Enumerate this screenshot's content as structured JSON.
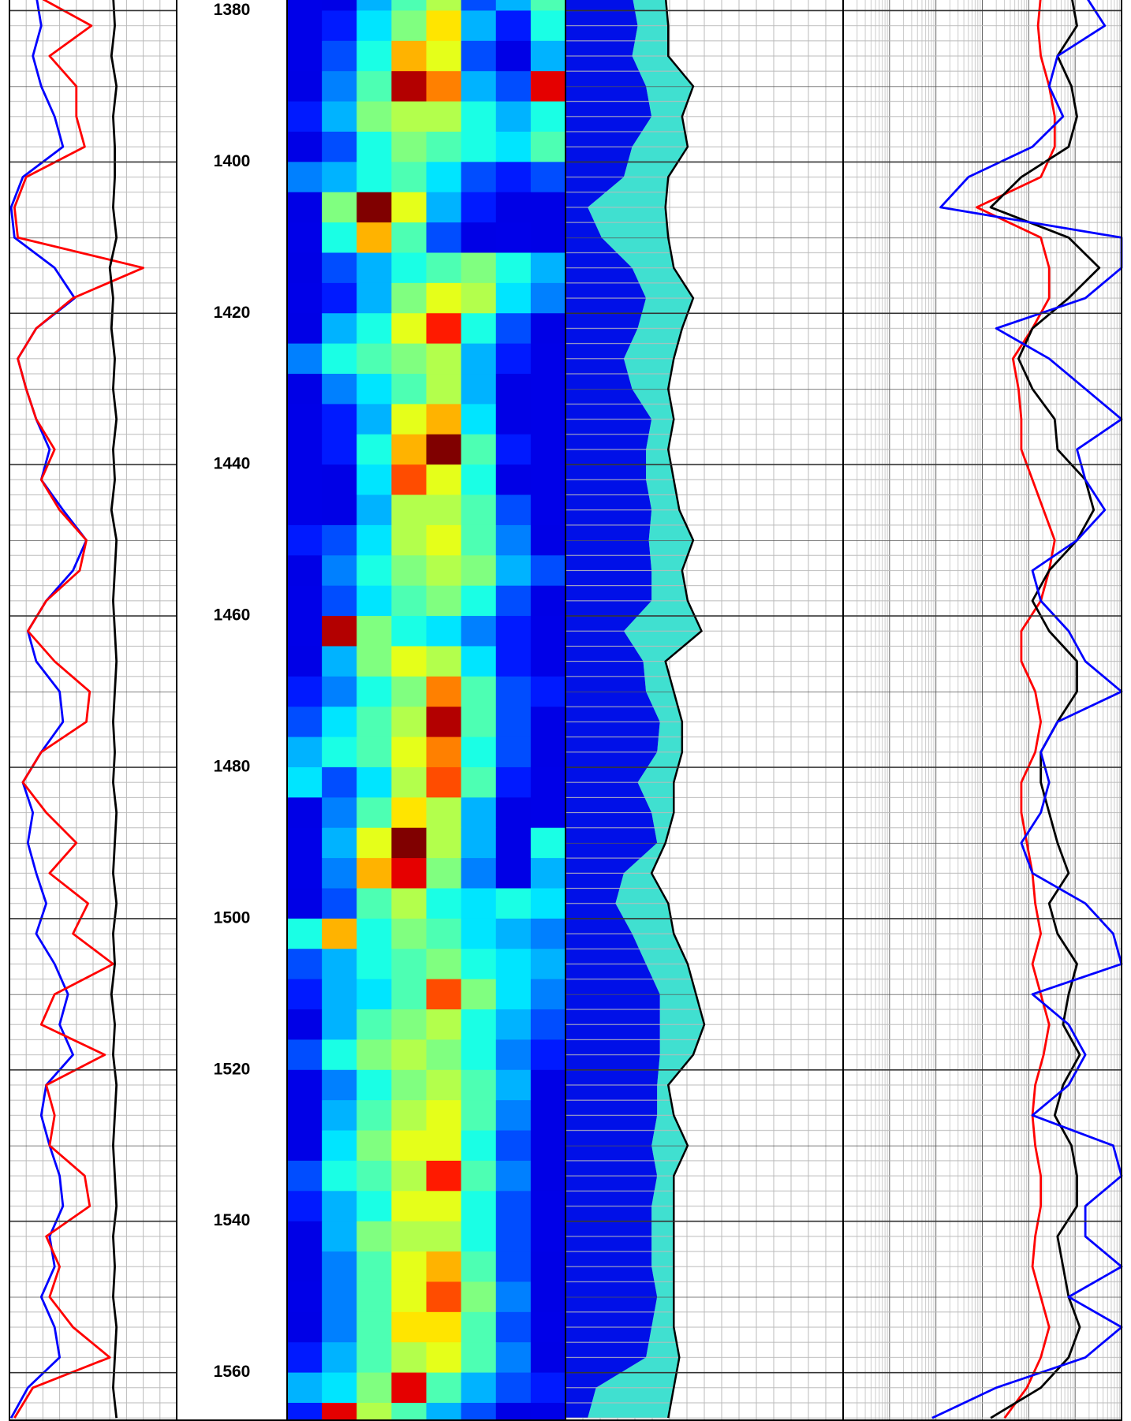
{
  "chart_data": {
    "type": "well-log",
    "ylim": [
      1378.6,
      1566.4
    ],
    "yticks": [
      1380,
      1400,
      1420,
      1440,
      1460,
      1480,
      1500,
      1520,
      1540,
      1560
    ],
    "depths": [
      1378,
      1382,
      1386,
      1390,
      1394,
      1398,
      1402,
      1406,
      1410,
      1414,
      1418,
      1422,
      1426,
      1430,
      1434,
      1438,
      1442,
      1446,
      1450,
      1454,
      1458,
      1462,
      1466,
      1470,
      1474,
      1478,
      1482,
      1486,
      1490,
      1494,
      1498,
      1502,
      1506,
      1510,
      1514,
      1518,
      1522,
      1526,
      1530,
      1534,
      1538,
      1542,
      1546,
      1550,
      1554,
      1558,
      1562,
      1566
    ],
    "tracks": [
      {
        "type": "line",
        "xlim": [
          0,
          100
        ],
        "series": [
          {
            "color": "#0000ff",
            "values": [
              16,
              19,
              14,
              19,
              27,
              32,
              8,
              1,
              3,
              27,
              39,
              16,
              5,
              10,
              16,
              24,
              19,
              32,
              46,
              38,
              22,
              11,
              16,
              30,
              32,
              19,
              8,
              14,
              11,
              16,
              22,
              16,
              27,
              35,
              30,
              38,
              22,
              19,
              24,
              30,
              32,
              24,
              27,
              19,
              27,
              30,
              11,
              1
            ]
          },
          {
            "color": "#ff0000",
            "values": [
              16,
              49,
              24,
              40,
              40,
              45,
              10,
              3,
              5,
              80,
              38,
              16,
              5,
              10,
              16,
              27,
              19,
              30,
              46,
              42,
              22,
              11,
              27,
              48,
              46,
              19,
              8,
              22,
              40,
              24,
              47,
              38,
              62,
              27,
              19,
              57,
              22,
              27,
              24,
              45,
              48,
              22,
              30,
              24,
              38,
              60,
              14,
              3
            ]
          },
          {
            "color": "#000000",
            "values": [
              62,
              63,
              61,
              64,
              62,
              63,
              63,
              62,
              64,
              60,
              62,
              61,
              63,
              62,
              64,
              62,
              63,
              61,
              64,
              63,
              62,
              63,
              64,
              63,
              62,
              63,
              62,
              64,
              63,
              62,
              64,
              62,
              63,
              61,
              63,
              62,
              64,
              63,
              62,
              63,
              64,
              62,
              63,
              62,
              64,
              63,
              62,
              64
            ]
          }
        ]
      },
      {
        "type": "heatmap",
        "values": [
          [
            5,
            10,
            30,
            45,
            55,
            20,
            30,
            45
          ],
          [
            5,
            15,
            35,
            50,
            65,
            30,
            15,
            40
          ],
          [
            5,
            20,
            40,
            70,
            60,
            20,
            10,
            30
          ],
          [
            10,
            25,
            45,
            95,
            75,
            30,
            20,
            90
          ],
          [
            15,
            30,
            50,
            55,
            55,
            40,
            30,
            40
          ],
          [
            10,
            20,
            40,
            50,
            45,
            40,
            35,
            45
          ],
          [
            25,
            30,
            40,
            45,
            35,
            20,
            15,
            20
          ],
          [
            10,
            50,
            100,
            60,
            30,
            15,
            10,
            10
          ],
          [
            5,
            40,
            70,
            45,
            20,
            10,
            5,
            10
          ],
          [
            10,
            20,
            30,
            40,
            45,
            50,
            40,
            30
          ],
          [
            5,
            15,
            30,
            50,
            60,
            55,
            35,
            25
          ],
          [
            10,
            30,
            40,
            60,
            85,
            40,
            20,
            10
          ],
          [
            25,
            40,
            45,
            50,
            55,
            30,
            15,
            5
          ],
          [
            10,
            25,
            35,
            45,
            55,
            30,
            10,
            5
          ],
          [
            5,
            15,
            30,
            60,
            70,
            35,
            10,
            5
          ],
          [
            5,
            15,
            40,
            70,
            100,
            45,
            15,
            5
          ],
          [
            5,
            10,
            35,
            80,
            60,
            40,
            10,
            5
          ],
          [
            5,
            10,
            30,
            55,
            55,
            45,
            20,
            5
          ],
          [
            15,
            20,
            35,
            55,
            60,
            45,
            25,
            10
          ],
          [
            10,
            25,
            40,
            50,
            55,
            50,
            30,
            20
          ],
          [
            5,
            20,
            35,
            45,
            50,
            40,
            20,
            10
          ],
          [
            5,
            95,
            50,
            40,
            35,
            25,
            15,
            5
          ],
          [
            10,
            30,
            50,
            60,
            55,
            35,
            15,
            5
          ],
          [
            15,
            25,
            40,
            50,
            75,
            45,
            20,
            15
          ],
          [
            20,
            35,
            45,
            55,
            95,
            45,
            20,
            10
          ],
          [
            30,
            40,
            45,
            60,
            75,
            40,
            20,
            10
          ],
          [
            35,
            20,
            35,
            55,
            80,
            45,
            15,
            5
          ],
          [
            10,
            25,
            45,
            65,
            55,
            30,
            10,
            5
          ],
          [
            5,
            30,
            60,
            100,
            55,
            30,
            10,
            40
          ],
          [
            5,
            25,
            70,
            90,
            50,
            25,
            10,
            30
          ],
          [
            10,
            20,
            45,
            55,
            40,
            35,
            40,
            35
          ],
          [
            40,
            70,
            40,
            50,
            45,
            35,
            30,
            25
          ],
          [
            20,
            30,
            40,
            45,
            50,
            40,
            35,
            30
          ],
          [
            15,
            30,
            35,
            45,
            80,
            50,
            35,
            25
          ],
          [
            10,
            30,
            45,
            50,
            55,
            40,
            30,
            20
          ],
          [
            20,
            40,
            50,
            55,
            50,
            40,
            25,
            15
          ],
          [
            5,
            25,
            40,
            50,
            55,
            45,
            30,
            10
          ],
          [
            10,
            30,
            45,
            55,
            60,
            45,
            25,
            10
          ],
          [
            10,
            35,
            50,
            60,
            60,
            40,
            20,
            10
          ],
          [
            20,
            40,
            45,
            55,
            85,
            45,
            25,
            10
          ],
          [
            15,
            30,
            40,
            60,
            60,
            40,
            20,
            5
          ],
          [
            10,
            30,
            50,
            55,
            55,
            40,
            20,
            5
          ],
          [
            10,
            25,
            45,
            60,
            70,
            45,
            20,
            10
          ],
          [
            5,
            25,
            45,
            60,
            80,
            50,
            25,
            10
          ],
          [
            10,
            25,
            45,
            65,
            65,
            45,
            20,
            5
          ],
          [
            15,
            30,
            45,
            55,
            60,
            45,
            25,
            10
          ],
          [
            30,
            35,
            50,
            90,
            45,
            30,
            20,
            15
          ],
          [
            15,
            90,
            55,
            45,
            30,
            20,
            10,
            5
          ]
        ]
      },
      {
        "type": "area",
        "xlim": [
          0,
          100
        ],
        "series": [
          {
            "color": "#0010e8",
            "values": [
              24,
              26,
              24,
              29,
              31,
              24,
              21,
              8,
              13,
              24,
              29,
              26,
              21,
              24,
              31,
              29,
              29,
              31,
              30,
              31,
              31,
              21,
              28,
              29,
              34,
              33,
              26,
              31,
              33,
              21,
              18,
              24,
              29,
              34,
              34,
              34,
              33,
              33,
              31,
              33,
              31,
              31,
              31,
              33,
              31,
              29,
              11,
              8
            ]
          },
          {
            "color": "#40e0d0",
            "values": [
              36,
              37,
              37,
              46,
              42,
              44,
              37,
              36,
              37,
              39,
              46,
              42,
              39,
              37,
              39,
              37,
              39,
              41,
              46,
              42,
              44,
              49,
              36,
              39,
              42,
              42,
              39,
              39,
              36,
              31,
              37,
              39,
              44,
              47,
              50,
              46,
              37,
              39,
              44,
              39,
              39,
              39,
              39,
              39,
              39,
              41,
              39,
              37
            ]
          }
        ]
      },
      {
        "type": "line",
        "xlim": [
          0,
          100
        ],
        "series": [
          {
            "color": "#ff0000",
            "values": [
              71,
              70,
              71,
              74,
              76,
              76,
              71,
              48,
              71,
              74,
              74,
              68,
              61,
              63,
              64,
              64,
              68,
              72,
              76,
              74,
              71,
              64,
              64,
              69,
              71,
              69,
              64,
              64,
              66,
              68,
              69,
              71,
              68,
              71,
              74,
              72,
              69,
              68,
              69,
              71,
              71,
              69,
              68,
              71,
              74,
              71,
              66,
              58
            ]
          },
          {
            "color": "#000000",
            "values": [
              82,
              84,
              77,
              82,
              84,
              81,
              64,
              53,
              81,
              92,
              81,
              68,
              63,
              68,
              76,
              77,
              87,
              90,
              84,
              74,
              68,
              74,
              84,
              84,
              77,
              71,
              71,
              74,
              77,
              81,
              74,
              77,
              84,
              81,
              79,
              85,
              79,
              76,
              82,
              84,
              84,
              77,
              79,
              81,
              85,
              81,
              71,
              53
            ]
          },
          {
            "color": "#0000ff",
            "values": [
              87,
              94,
              77,
              74,
              79,
              68,
              45,
              35,
              100,
              100,
              87,
              55,
              74,
              87,
              100,
              84,
              87,
              94,
              84,
              68,
              71,
              81,
              87,
              100,
              77,
              71,
              74,
              71,
              64,
              68,
              87,
              97,
              100,
              68,
              81,
              87,
              81,
              68,
              97,
              100,
              87,
              87,
              100,
              81,
              100,
              87,
              55,
              32
            ]
          }
        ]
      }
    ]
  }
}
